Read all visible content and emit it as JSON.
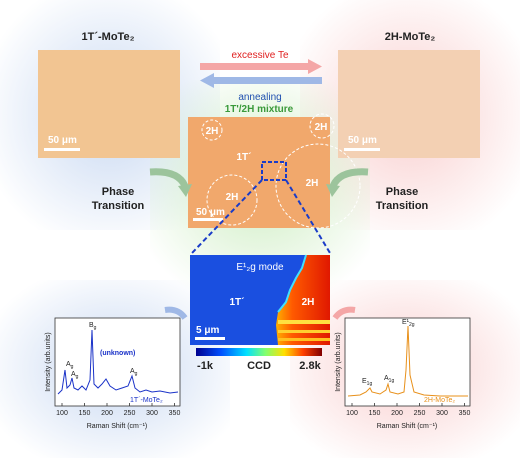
{
  "left_panel": {
    "title": "1T´-MoTe₂",
    "scale_bar": "50 μm"
  },
  "right_panel": {
    "title": "2H-MoTe₂",
    "scale_bar": "50 μm"
  },
  "arrows": {
    "forward": "excessive Te",
    "backward": "annealing"
  },
  "mixture": {
    "title": "1T'/2H mixture",
    "labels": [
      "2H",
      "2H",
      "1T´",
      "2H",
      "2H"
    ],
    "scale_bar": "50 μm"
  },
  "transitions": {
    "left": [
      "Phase",
      "Transition"
    ],
    "right": [
      "Phase",
      "Transition"
    ]
  },
  "raman_map": {
    "mode": "E¹₂g mode",
    "phase_left": "1T´",
    "phase_right": "2H",
    "scale_bar": "5 μm",
    "colorbar": {
      "min": "-1k",
      "label": "CCD",
      "max": "2.8k"
    }
  },
  "spectrum_left": {
    "y_label": "Intensity (arb.units)",
    "x_label": "Raman Shift (cm⁻¹)",
    "x_ticks": [
      "100",
      "150",
      "200",
      "250",
      "300",
      "350"
    ],
    "peaks": [
      {
        "main": "A",
        "sub": "g"
      },
      {
        "main": "A",
        "sub": "g"
      },
      {
        "main": "B",
        "sub": "g"
      },
      {
        "main": "A",
        "sub": "g"
      }
    ],
    "unknown": "(unknown)",
    "legend": "1T´-MoTe₂"
  },
  "spectrum_right": {
    "y_label": "Intensity (arb.units)",
    "x_label": "Raman Shift (cm⁻¹)",
    "x_ticks": [
      "100",
      "150",
      "200",
      "250",
      "300",
      "350"
    ],
    "peaks": [
      {
        "main": "E",
        "sub": "1g"
      },
      {
        "main": "A",
        "sub": "1g"
      },
      {
        "main": "E¹",
        "sub": "2g"
      }
    ],
    "legend": "2H-MoTe₂"
  }
}
